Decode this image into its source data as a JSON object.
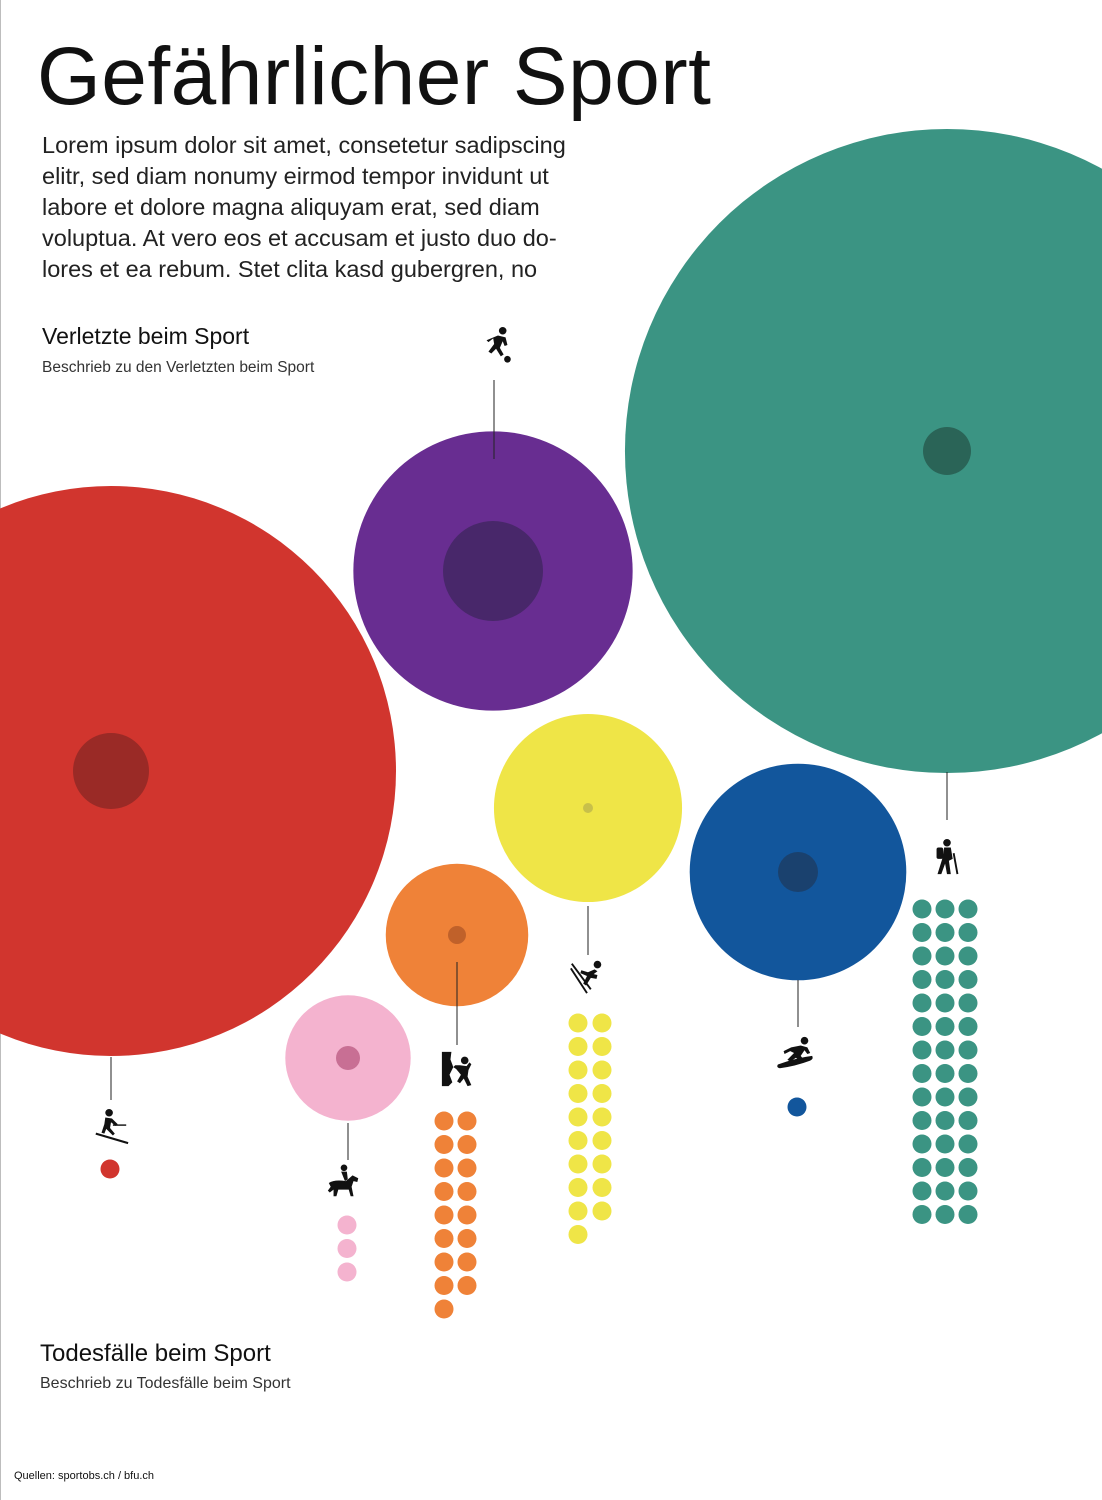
{
  "header": {
    "title": "Gefährlicher Sport",
    "intro_lines": [
      "Lorem ipsum dolor sit amet, consetetur sadipscing",
      "elitr, sed diam nonumy eirmod tempor invidunt ut",
      "labore et dolore magna aliquyam erat, sed diam",
      "voluptua. At vero eos et accusam et justo duo do-",
      "lores et ea rebum. Stet clita kasd gubergren, no"
    ]
  },
  "legend_injuries": {
    "title": "Verletzte beim Sport",
    "description": "Beschrieb zu den Verletzten beim Sport"
  },
  "legend_deaths": {
    "title": "Todesfälle beim Sport",
    "description": "Beschrieb zu Todesfälle beim Sport"
  },
  "footer": {
    "source": "Quellen: sportobs.ch / bfu.ch"
  },
  "chart_data": {
    "type": "bubble",
    "series": [
      {
        "sport": "ski",
        "icon": "skiing-icon",
        "color": "#d1352e",
        "inner_color": "#9a2a26",
        "injuries_relative": 1.0,
        "deaths_dots": 1
      },
      {
        "sport": "football",
        "icon": "football-icon",
        "color": "#682d91",
        "inner_color": "#48276a",
        "injuries_relative": 0.49,
        "deaths_dots": 0
      },
      {
        "sport": "hiking",
        "icon": "hiking-icon",
        "color": "#3b9483",
        "inner_color": "#2a6457",
        "injuries_relative": 1.13,
        "deaths_dots": 42
      },
      {
        "sport": "horse riding",
        "icon": "horse-riding-icon",
        "color": "#f4b3cf",
        "inner_color": "#c86f94",
        "injuries_relative": 0.22,
        "deaths_dots": 3
      },
      {
        "sport": "climbing",
        "icon": "climbing-icon",
        "color": "#ef8238",
        "inner_color": "#c0612a",
        "injuries_relative": 0.25,
        "deaths_dots": 17
      },
      {
        "sport": "ski touring",
        "icon": "ski-fall-icon",
        "color": "#efe547",
        "inner_color": "#c8c04a",
        "injuries_relative": 0.33,
        "deaths_dots": 19
      },
      {
        "sport": "snowboard",
        "icon": "snowboard-icon",
        "color": "#12569c",
        "inner_color": "#1a416e",
        "injuries_relative": 0.38,
        "deaths_dots": 1
      }
    ]
  }
}
